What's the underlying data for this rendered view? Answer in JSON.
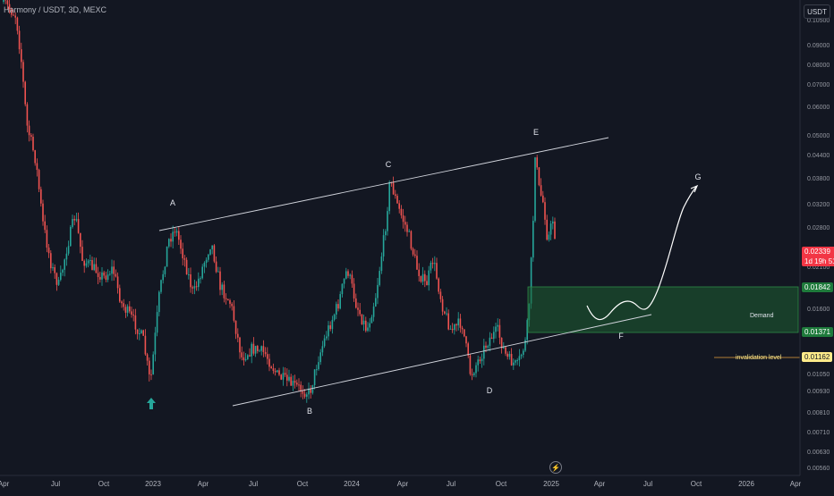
{
  "symbol_title": "Harmony / USDT, 3D, MEXC",
  "currency": "USDT",
  "chart_data": {
    "type": "candlestick",
    "price_axis_ticks": [
      "0.10500",
      "0.09000",
      "0.08000",
      "0.07000",
      "0.06000",
      "0.05000",
      "0.04400",
      "0.03800",
      "0.03200",
      "0.02800",
      "0.02100",
      "0.01600",
      "0.01050",
      "0.00930",
      "0.00810",
      "0.00710",
      "0.00630",
      "0.00560"
    ],
    "time_axis_ticks": [
      "Apr",
      "Jul",
      "Oct",
      "2023",
      "Apr",
      "Jul",
      "Oct",
      "2024",
      "Apr",
      "Jul",
      "Oct",
      "2025",
      "Apr",
      "Jul",
      "Oct",
      "2026",
      "Apr"
    ],
    "current_price": "0.02339",
    "countdown": "1d 19h 51",
    "demand_zone": {
      "label": "Demand",
      "upper": "0.01842",
      "lower": "0.01371"
    },
    "invalidation": {
      "label": "invalidation level",
      "price": "0.01162"
    },
    "points": [
      {
        "label": "A"
      },
      {
        "label": "B"
      },
      {
        "label": "C"
      },
      {
        "label": "D"
      },
      {
        "label": "E"
      },
      {
        "label": "F"
      },
      {
        "label": "G"
      }
    ],
    "colors": {
      "up": "#26a69a",
      "down": "#ef5350",
      "background": "#131722",
      "demand_zone": "#1e5e32",
      "invalidation": "#ffeb8a"
    }
  }
}
